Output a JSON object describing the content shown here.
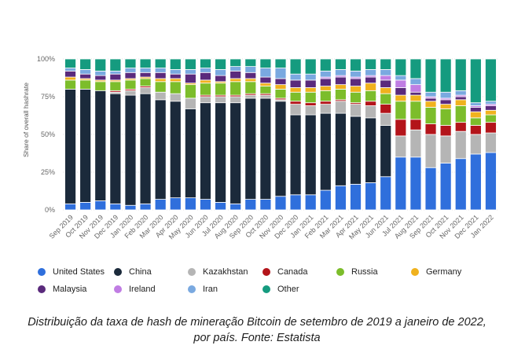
{
  "chart_data": {
    "type": "bar",
    "stacked": true,
    "ylabel": "Share of overall hashrate",
    "ylim": [
      0,
      100
    ],
    "y_ticks": [
      "0%",
      "25%",
      "50%",
      "75%",
      "100%"
    ],
    "grid": true,
    "legend_position": "bottom",
    "categories": [
      "Sep 2019",
      "Oct 2019",
      "Nov 2019",
      "Dec 2019",
      "Jan 2020",
      "Feb 2020",
      "Mar 2020",
      "Apr 2020",
      "May 2020",
      "Jun 2020",
      "Jul 2020",
      "Aug 2020",
      "Sep 2020",
      "Oct 2020",
      "Nov 2020",
      "Dec 2020",
      "Jan 2021",
      "Feb 2021",
      "Mar 2021",
      "Apr 2021",
      "May 2021",
      "Jun 2021",
      "Jul 2021",
      "Aug 2021",
      "Sep 2021",
      "Oct 2021",
      "Nov 2021",
      "Dec 2021",
      "Jan 2022"
    ],
    "series": [
      {
        "name": "United States",
        "color": "#2f6fdc",
        "values": [
          4,
          5,
          6,
          4,
          3,
          4,
          7,
          8,
          8,
          7,
          5,
          4,
          7,
          7,
          9,
          10,
          10,
          13,
          16,
          17,
          18,
          22,
          35,
          35,
          28,
          31,
          34,
          37,
          38
        ]
      },
      {
        "name": "China",
        "color": "#1b2a3b",
        "values": [
          76,
          75,
          73,
          73,
          73,
          73,
          66,
          64,
          59,
          64,
          66,
          67,
          67,
          67,
          63,
          53,
          53,
          51,
          48,
          45,
          43,
          34,
          0,
          0,
          0,
          0,
          0,
          0,
          0
        ]
      },
      {
        "name": "Kazakhstan",
        "color": "#b5b5b5",
        "values": [
          0,
          0,
          0,
          1,
          3,
          4,
          5,
          5,
          7,
          4,
          4,
          4,
          2,
          2,
          1,
          7,
          6,
          6,
          8,
          8,
          8,
          8,
          14,
          18,
          22,
          18,
          18,
          13,
          13
        ]
      },
      {
        "name": "Canada",
        "color": "#b3141a",
        "values": [
          0,
          0,
          0,
          1,
          1,
          1,
          0,
          0,
          0,
          1,
          1,
          1,
          1,
          1,
          1,
          2,
          2,
          2,
          1,
          1,
          3,
          6,
          11,
          7,
          7,
          7,
          6,
          6,
          7
        ]
      },
      {
        "name": "Russia",
        "color": "#7cbd2b",
        "values": [
          6,
          6,
          6,
          6,
          6,
          5,
          7,
          8,
          9,
          8,
          8,
          9,
          8,
          5,
          6,
          6,
          7,
          7,
          7,
          7,
          7,
          7,
          12,
          12,
          11,
          11,
          11,
          5,
          5
        ]
      },
      {
        "name": "Germany",
        "color": "#f0b21e",
        "values": [
          2,
          1,
          1,
          1,
          1,
          1,
          2,
          2,
          1,
          2,
          1,
          2,
          2,
          2,
          3,
          3,
          3,
          3,
          3,
          4,
          5,
          4,
          4,
          4,
          4,
          3,
          4,
          4,
          3
        ]
      },
      {
        "name": "Malaysia",
        "color": "#5a2a7c",
        "values": [
          4,
          3,
          3,
          4,
          4,
          3,
          4,
          3,
          6,
          5,
          4,
          5,
          4,
          4,
          4,
          5,
          5,
          5,
          5,
          5,
          4,
          5,
          5,
          2,
          2,
          3,
          2,
          3,
          3
        ]
      },
      {
        "name": "Ireland",
        "color": "#c07de3",
        "values": [
          0,
          0,
          0,
          0,
          0,
          0,
          0,
          0,
          0,
          0,
          0,
          0,
          0,
          0,
          0,
          0,
          0,
          1,
          1,
          1,
          1,
          3,
          5,
          5,
          1,
          1,
          1,
          1,
          1
        ]
      },
      {
        "name": "Iran",
        "color": "#7aa9e0",
        "values": [
          2,
          3,
          3,
          2,
          3,
          3,
          3,
          3,
          3,
          3,
          4,
          3,
          4,
          6,
          7,
          4,
          4,
          4,
          4,
          4,
          4,
          4,
          3,
          4,
          3,
          4,
          3,
          2,
          2
        ]
      },
      {
        "name": "Other",
        "color": "#159b7f",
        "values": [
          6,
          7,
          8,
          8,
          6,
          6,
          6,
          7,
          7,
          6,
          7,
          5,
          5,
          6,
          6,
          10,
          10,
          8,
          7,
          8,
          7,
          7,
          11,
          13,
          22,
          22,
          21,
          29,
          28
        ]
      }
    ]
  },
  "caption": {
    "line1": "Distribuição da taxa de hash de mineração Bitcoin de setembro de 2019 a janeiro de 2022,",
    "line2": "por país. Fonte: Estatista"
  }
}
